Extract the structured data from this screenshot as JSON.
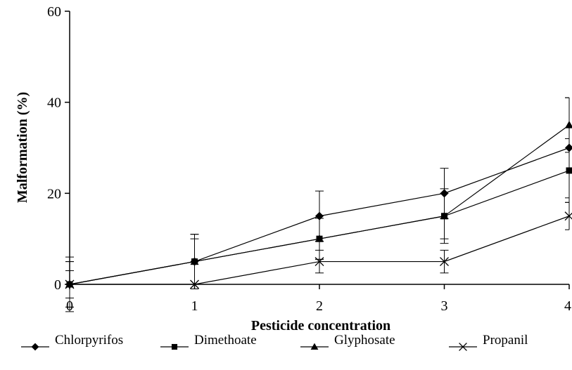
{
  "chart_data": {
    "type": "line",
    "title": "",
    "xlabel": "Pesticide concentration",
    "ylabel": "Malformation (%)",
    "x": [
      0,
      1,
      2,
      3,
      4
    ],
    "xticks": [
      "0",
      "1",
      "2",
      "3",
      "4"
    ],
    "yticks": [
      "0",
      "20",
      "40",
      "60"
    ],
    "xlim": [
      0,
      4
    ],
    "ylim": [
      0,
      60
    ],
    "grid": false,
    "legend_position": "bottom",
    "series": [
      {
        "name": "Chlorpyrifos",
        "marker": "diamond",
        "color": "#000000",
        "values": [
          0,
          5,
          15,
          20,
          30
        ],
        "errors": [
          6,
          6,
          5.5,
          5.5,
          11
        ]
      },
      {
        "name": "Dimethoate",
        "marker": "square",
        "color": "#000000",
        "values": [
          0,
          5,
          10,
          15,
          25
        ],
        "errors": [
          5,
          5,
          4.5,
          5,
          7
        ]
      },
      {
        "name": "Glyphosate",
        "marker": "triangle",
        "color": "#000000",
        "values": [
          0,
          5,
          10,
          15,
          35
        ],
        "errors": [
          5,
          6,
          4.5,
          6,
          6
        ]
      },
      {
        "name": "Propanil",
        "marker": "x",
        "color": "#000000",
        "values": [
          0,
          0,
          5,
          5,
          15
        ],
        "errors": [
          3,
          0,
          2.5,
          2.5,
          3
        ]
      }
    ]
  }
}
